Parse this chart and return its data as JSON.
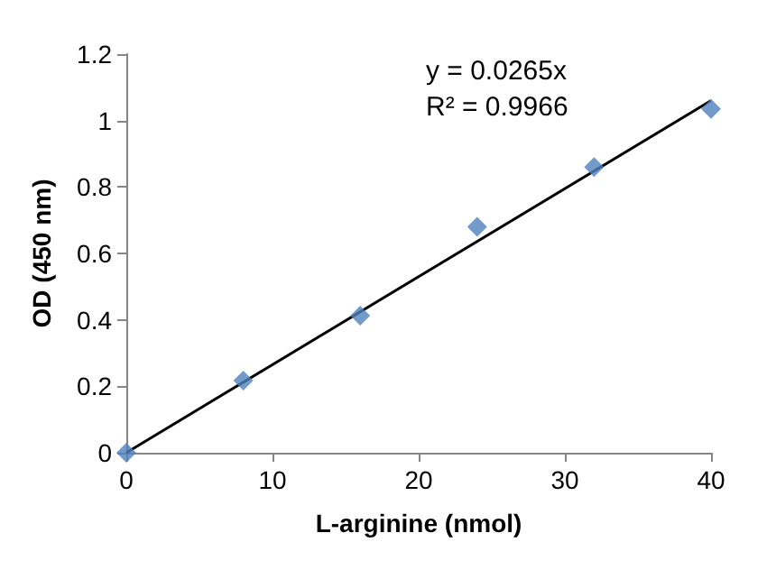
{
  "chart_data": {
    "type": "scatter",
    "xlabel": "L-arginine (nmol)",
    "ylabel": "OD (450 nm)",
    "marker": "diamond",
    "grid": false,
    "xlim": [
      0,
      40
    ],
    "xticks": [
      0,
      10,
      20,
      30,
      40
    ],
    "ylim": [
      0,
      1.2
    ],
    "yticks": [
      0,
      0.2,
      0.4,
      0.6,
      0.8,
      1,
      1.2
    ],
    "annotations": [
      "y = 0.0265x",
      "R² = 0.9966"
    ],
    "series": [
      {
        "color": "#4f81bd",
        "x": [
          0,
          8,
          16,
          24,
          32,
          40
        ],
        "values": [
          0,
          0.217,
          0.413,
          0.68,
          0.86,
          1.035
        ]
      },
      {
        "type": "line",
        "color": "#000000",
        "marker": "none",
        "x": [
          0,
          40
        ],
        "values": [
          0,
          1.06
        ]
      }
    ]
  }
}
